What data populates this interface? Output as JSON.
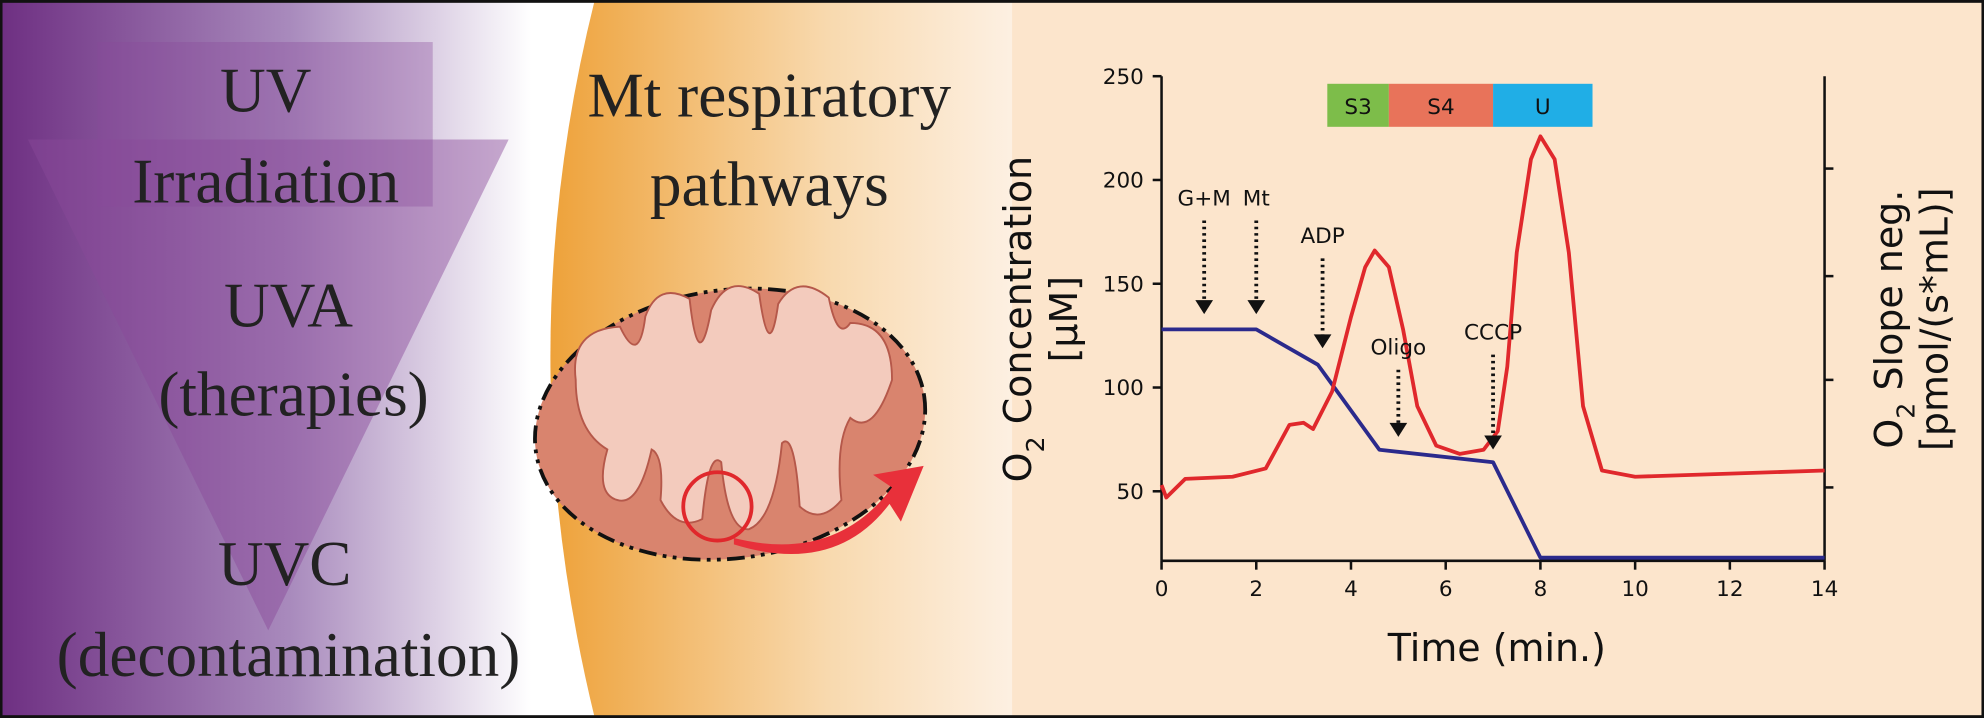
{
  "panel": {
    "uv_title": [
      "UV",
      "Irradiation"
    ],
    "uva": [
      "UVA",
      "(therapies)"
    ],
    "uvc": [
      "UVC",
      "(decontamination)"
    ],
    "mt_title": [
      "Mt respiratory",
      "pathways"
    ]
  },
  "chart_data": {
    "type": "line",
    "x_label": "Time (min.)",
    "y_label": {
      "main": "O",
      "sub": "2",
      "rest": " Concentration",
      "unit": "[μM]"
    },
    "y2_label": {
      "main": "O",
      "sub": "2",
      "rest": " Slope neg.",
      "unit": "[pmol/(s*mL)]"
    },
    "xlim": [
      0,
      14
    ],
    "xticks": [
      0,
      2,
      4,
      6,
      8,
      10,
      12,
      14
    ],
    "ylim": [
      16.5,
      250
    ],
    "yticks": [
      50,
      100,
      150,
      200,
      250
    ],
    "series": [
      {
        "color": "#2b2a8c",
        "x": [
          0,
          2,
          3.3,
          4.6,
          7,
          8,
          14
        ],
        "values": [
          128,
          128,
          111,
          70,
          64,
          18,
          18
        ]
      },
      {
        "color": "#e0282c",
        "x": [
          0,
          0.1,
          0.5,
          1.5,
          2.2,
          2.7,
          3,
          3.2,
          3.6,
          4,
          4.3,
          4.5,
          4.8,
          5.1,
          5.4,
          5.8,
          6.3,
          6.8,
          7.1,
          7.3,
          7.5,
          7.8,
          8,
          8.3,
          8.6,
          8.9,
          9.3,
          10,
          14
        ],
        "values": [
          53,
          47,
          56,
          57,
          61,
          82,
          83,
          80,
          98,
          134,
          158,
          166,
          158,
          128,
          91,
          72,
          68,
          70,
          79,
          110,
          165,
          210,
          221,
          210,
          165,
          91,
          60,
          57,
          60
        ]
      }
    ],
    "annotations": [
      {
        "text": "G+M",
        "x": 0.9
      },
      {
        "text": "Mt",
        "x": 2
      },
      {
        "text": "ADP",
        "x": 3.4
      },
      {
        "text": "Oligo",
        "x": 5
      },
      {
        "text": "CCCP",
        "x": 7
      }
    ],
    "phases": [
      {
        "label": "S3",
        "start": 3.5,
        "end": 4.8,
        "color": "#7dbd4a"
      },
      {
        "label": "S4",
        "start": 4.8,
        "end": 7,
        "color": "#e8735a"
      },
      {
        "label": "U",
        "start": 7,
        "end": 9.1,
        "color": "#20aee6"
      }
    ]
  }
}
